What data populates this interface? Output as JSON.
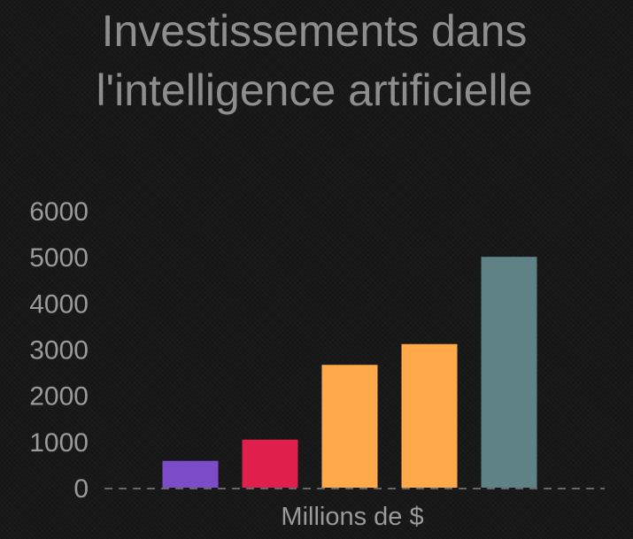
{
  "chart_data": {
    "type": "bar",
    "title_lines": [
      "Investissements dans",
      "l'intelligence artificielle"
    ],
    "title": "Investissements dans l'intelligence artificielle",
    "xlabel": "Millions de $",
    "ylabel": "",
    "categories": [
      "",
      "",
      "",
      "",
      ""
    ],
    "values": [
      580,
      1040,
      2660,
      3110,
      5000
    ],
    "colors": [
      "#7b4bc8",
      "#e01f4c",
      "#ffa94a",
      "#ffa94a",
      "#5f8287"
    ],
    "ylim": [
      0,
      6000
    ],
    "yticks": [
      0,
      1000,
      2000,
      3000,
      4000,
      5000,
      6000
    ],
    "grid": false,
    "legend": "none",
    "baseline_style": "dashed"
  }
}
